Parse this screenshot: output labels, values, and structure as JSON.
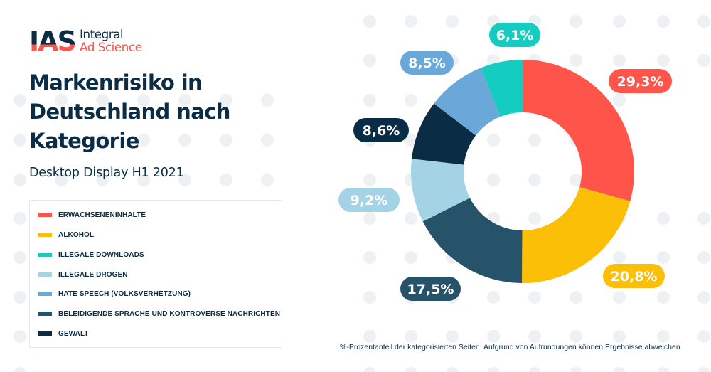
{
  "brand": {
    "logo_mark": "IAS",
    "logo_line1": "Integral",
    "logo_line2": "Ad Science"
  },
  "header": {
    "title": "Markenrisiko in Deutschland nach Kategorie",
    "subtitle": "Desktop Display H1 2021"
  },
  "colors": {
    "navy": "#0B2C45",
    "accent_red": "#FF5449",
    "dot_gray": "#EEF1F3"
  },
  "legend": {
    "items": [
      {
        "label": "ERWACHSENENINHALTE",
        "color": "#FF5449"
      },
      {
        "label": "ALKOHOL",
        "color": "#FBBF07"
      },
      {
        "label": "ILLEGALE DOWNLOADS",
        "color": "#14CDC0"
      },
      {
        "label": "ILLEGALE DROGEN",
        "color": "#A4D3E6"
      },
      {
        "label": "HATE SPEECH (VOLKSVERHETZUNG)",
        "color": "#6AA8DA"
      },
      {
        "label": "BELEIDIGENDE SPRACHE UND KONTROVERSE NACHRICHTEN",
        "color": "#26526A"
      },
      {
        "label": "GEWALT",
        "color": "#0B2C45"
      }
    ]
  },
  "footnote": "%-Prozentanteil der kategorisierten Seiten. Aufgrund von Aufrundungen können Ergebnisse abweichen.",
  "chart_data": {
    "type": "pie",
    "variant": "donut",
    "title": "Markenrisiko in Deutschland nach Kategorie",
    "subtitle": "Desktop Display H1 2021",
    "start": "top",
    "direction": "clockwise",
    "legend_position": "left",
    "slices": [
      {
        "category": "ERWACHSENENINHALTE",
        "value": 29.3,
        "label": "29,3%",
        "color": "#FF5449"
      },
      {
        "category": "ALKOHOL",
        "value": 20.8,
        "label": "20,8%",
        "color": "#FBBF07"
      },
      {
        "category": "BELEIDIGENDE SPRACHE UND KONTROVERSE NACHRICHTEN",
        "value": 17.5,
        "label": "17,5%",
        "color": "#26526A"
      },
      {
        "category": "ILLEGALE DROGEN",
        "value": 9.2,
        "label": "9,2%",
        "color": "#A4D3E6"
      },
      {
        "category": "GEWALT",
        "value": 8.6,
        "label": "8,6%",
        "color": "#0B2C45"
      },
      {
        "category": "HATE SPEECH (VOLKSVERHETZUNG)",
        "value": 8.5,
        "label": "8,5%",
        "color": "#6AA8DA"
      },
      {
        "category": "ILLEGALE DOWNLOADS",
        "value": 6.1,
        "label": "6,1%",
        "color": "#14CDC0"
      }
    ],
    "unit": "%"
  }
}
